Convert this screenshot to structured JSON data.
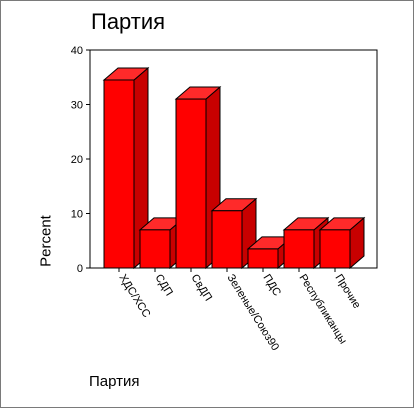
{
  "chart_data": {
    "type": "bar",
    "title": "Партия",
    "xlabel": "Партия",
    "ylabel": "Percent",
    "categories": [
      "ХДС/ХСС",
      "СДП",
      "СвДП",
      "Зеленые/Союз90",
      "ПДС",
      "Республиканцы",
      "Прочие"
    ],
    "values": [
      34.5,
      7,
      31,
      10.5,
      3.5,
      7,
      7
    ],
    "ylim": [
      0,
      40
    ],
    "yticks": [
      0,
      10,
      20,
      30,
      40
    ],
    "bar_style": "3d",
    "grid": false,
    "legend": "none",
    "colors": {
      "bar_front": "#ff0000",
      "bar_top": "#ff2a2a",
      "bar_side": "#c80000",
      "bar_edge": "#000000",
      "axis": "#000000"
    }
  }
}
